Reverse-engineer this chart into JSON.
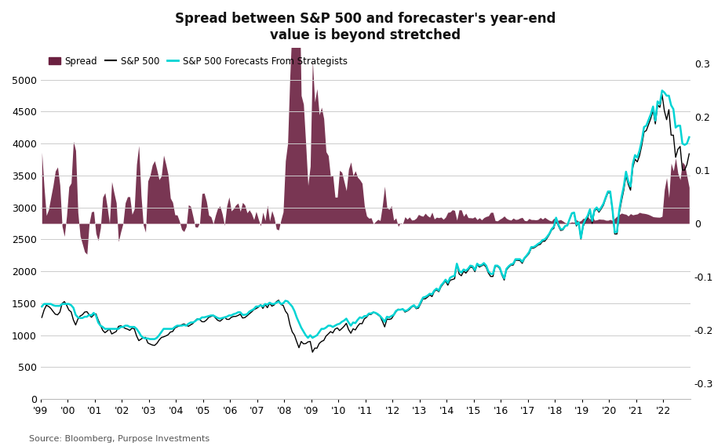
{
  "title": "Spread between S&P 500 and forecaster's year-end\nvalue is beyond stretched",
  "source": "Source: Bloomberg, Purpose Investments",
  "left_ylim": [
    0,
    5500
  ],
  "right_ylim": [
    -0.33,
    0.33
  ],
  "left_yticks": [
    0,
    500,
    1000,
    1500,
    2000,
    2500,
    3000,
    3500,
    4000,
    4500,
    5000
  ],
  "right_yticks": [
    -0.3,
    -0.2,
    -0.1,
    0,
    0.1,
    0.2,
    0.3
  ],
  "sp500_color": "#000000",
  "forecast_color": "#00D4D4",
  "spread_color": "#6B2040",
  "background_color": "#FFFFFF",
  "grid_color": "#CCCCCC",
  "xtick_labels": [
    "'99",
    "'00",
    "'01",
    "'02",
    "'03",
    "'04",
    "'05",
    "'06",
    "'07",
    "'08",
    "'09",
    "'10",
    "'11",
    "'12",
    "'13",
    "'14",
    "'15",
    "'16",
    "'17",
    "'18",
    "'19",
    "'20",
    "'21",
    "'22"
  ],
  "legend_labels": [
    "Spread",
    "S&P 500",
    "S&P 500 Forecasts From Strategists"
  ],
  "sp500_monthly": [
    1279,
    1394,
    1468,
    1452,
    1420,
    1372,
    1329,
    1320,
    1362,
    1498,
    1527,
    1469,
    1394,
    1366,
    1239,
    1161,
    1254,
    1301,
    1321,
    1363,
    1369,
    1320,
    1282,
    1320,
    1335,
    1240,
    1160,
    1077,
    1040,
    1067,
    1100,
    1020,
    1040,
    1059,
    1139,
    1148,
    1130,
    1107,
    1095,
    1076,
    1111,
    1100,
    990,
    916,
    940,
    963,
    966,
    880,
    862,
    847,
    841,
    872,
    924,
    964,
    975,
    990,
    1008,
    1050,
    1058,
    1112,
    1132,
    1145,
    1163,
    1178,
    1157,
    1140,
    1163,
    1184,
    1228,
    1259,
    1248,
    1212,
    1211,
    1239,
    1280,
    1294,
    1311,
    1270,
    1234,
    1220,
    1248,
    1285,
    1249,
    1248,
    1280,
    1294,
    1295,
    1310,
    1330,
    1270,
    1276,
    1304,
    1336,
    1365,
    1400,
    1418,
    1438,
    1477,
    1420,
    1482,
    1431,
    1503,
    1455,
    1474,
    1526,
    1549,
    1481,
    1468,
    1378,
    1330,
    1166,
    1054,
    1001,
    900,
    805,
    903,
    866,
    869,
    896,
    903,
    735,
    798,
    798,
    872,
    903,
    919,
    987,
    1020,
    1057,
    1036,
    1096,
    1115,
    1073,
    1104,
    1140,
    1187,
    1089,
    1031,
    1101,
    1083,
    1141,
    1183,
    1181,
    1258,
    1282,
    1327,
    1326,
    1361,
    1345,
    1320,
    1293,
    1219,
    1131,
    1253,
    1247,
    1258,
    1312,
    1366,
    1408,
    1398,
    1411,
    1363,
    1379,
    1403,
    1441,
    1460,
    1416,
    1426,
    1498,
    1569,
    1570,
    1597,
    1631,
    1606,
    1686,
    1710,
    1682,
    1759,
    1806,
    1848,
    1783,
    1860,
    1872,
    1884,
    2107,
    1960,
    1931,
    2003,
    1972,
    2018,
    2068,
    2059,
    1995,
    2105,
    2068,
    2086,
    2107,
    2063,
    1972,
    1920,
    1920,
    2079,
    2080,
    2044,
    1940,
    1864,
    2021,
    2065,
    2097,
    2099,
    2174,
    2173,
    2168,
    2126,
    2198,
    2239,
    2279,
    2363,
    2363,
    2384,
    2412,
    2423,
    2470,
    2472,
    2519,
    2575,
    2648,
    2674,
    2824,
    2714,
    2641,
    2648,
    2706,
    2718,
    2816,
    2902,
    2914,
    2711,
    2760,
    2507,
    2704,
    2784,
    2835,
    2946,
    2752,
    2942,
    2980,
    2926,
    2977,
    3037,
    3141,
    3231,
    3226,
    2954,
    2585,
    2585,
    2912,
    3100,
    3271,
    3500,
    3363,
    3270,
    3622,
    3756,
    3714,
    3811,
    3973,
    4181,
    4204,
    4298,
    4395,
    4523,
    4308,
    4606,
    4567,
    4766,
    4515,
    4374,
    4531,
    4132,
    4132,
    3785,
    3911,
    3955,
    3586,
    3585,
    3672,
    3840
  ],
  "forecast_monthly": [
    1450,
    1490,
    1490,
    1490,
    1490,
    1470,
    1460,
    1460,
    1460,
    1490,
    1490,
    1490,
    1490,
    1470,
    1430,
    1320,
    1280,
    1270,
    1270,
    1290,
    1290,
    1320,
    1310,
    1350,
    1310,
    1200,
    1150,
    1130,
    1100,
    1100,
    1100,
    1100,
    1100,
    1100,
    1100,
    1130,
    1130,
    1150,
    1150,
    1130,
    1130,
    1130,
    1100,
    1050,
    990,
    960,
    950,
    950,
    940,
    940,
    940,
    960,
    1000,
    1050,
    1100,
    1100,
    1100,
    1100,
    1100,
    1130,
    1150,
    1150,
    1150,
    1160,
    1150,
    1180,
    1200,
    1200,
    1220,
    1250,
    1250,
    1280,
    1280,
    1290,
    1300,
    1310,
    1310,
    1290,
    1270,
    1260,
    1270,
    1280,
    1290,
    1310,
    1310,
    1330,
    1340,
    1360,
    1360,
    1320,
    1320,
    1330,
    1370,
    1390,
    1410,
    1450,
    1450,
    1470,
    1450,
    1490,
    1480,
    1510,
    1490,
    1490,
    1510,
    1530,
    1490,
    1500,
    1540,
    1530,
    1490,
    1450,
    1380,
    1280,
    1200,
    1120,
    1060,
    1000,
    960,
    1000,
    960,
    980,
    1000,
    1050,
    1100,
    1100,
    1120,
    1150,
    1150,
    1130,
    1150,
    1170,
    1180,
    1210,
    1230,
    1260,
    1200,
    1150,
    1200,
    1190,
    1240,
    1280,
    1270,
    1300,
    1300,
    1340,
    1340,
    1360,
    1350,
    1330,
    1300,
    1260,
    1210,
    1290,
    1280,
    1300,
    1320,
    1380,
    1400,
    1400,
    1410,
    1380,
    1390,
    1420,
    1450,
    1470,
    1430,
    1450,
    1520,
    1590,
    1600,
    1620,
    1650,
    1640,
    1700,
    1730,
    1700,
    1780,
    1820,
    1870,
    1820,
    1900,
    1920,
    1930,
    2120,
    2010,
    1980,
    2030,
    2010,
    2040,
    2090,
    2080,
    2020,
    2120,
    2090,
    2100,
    2130,
    2090,
    2000,
    1960,
    1960,
    2090,
    2090,
    2060,
    1960,
    1890,
    2040,
    2080,
    2110,
    2120,
    2190,
    2190,
    2190,
    2150,
    2210,
    2250,
    2300,
    2380,
    2380,
    2400,
    2430,
    2450,
    2490,
    2500,
    2540,
    2590,
    2660,
    2700,
    2840,
    2730,
    2660,
    2660,
    2710,
    2720,
    2820,
    2910,
    2920,
    2730,
    2770,
    2520,
    2730,
    2810,
    2870,
    2970,
    2790,
    2960,
    3000,
    2950,
    3000,
    3060,
    3160,
    3250,
    3250,
    2970,
    2610,
    2620,
    2960,
    3160,
    3330,
    3560,
    3410,
    3330,
    3680,
    3820,
    3780,
    3890,
    4050,
    4260,
    4280,
    4370,
    4460,
    4580,
    4360,
    4660,
    4620,
    4830,
    4800,
    4750,
    4750,
    4600,
    4540,
    4250,
    4280,
    4280,
    4000,
    3980,
    4000,
    4100
  ]
}
